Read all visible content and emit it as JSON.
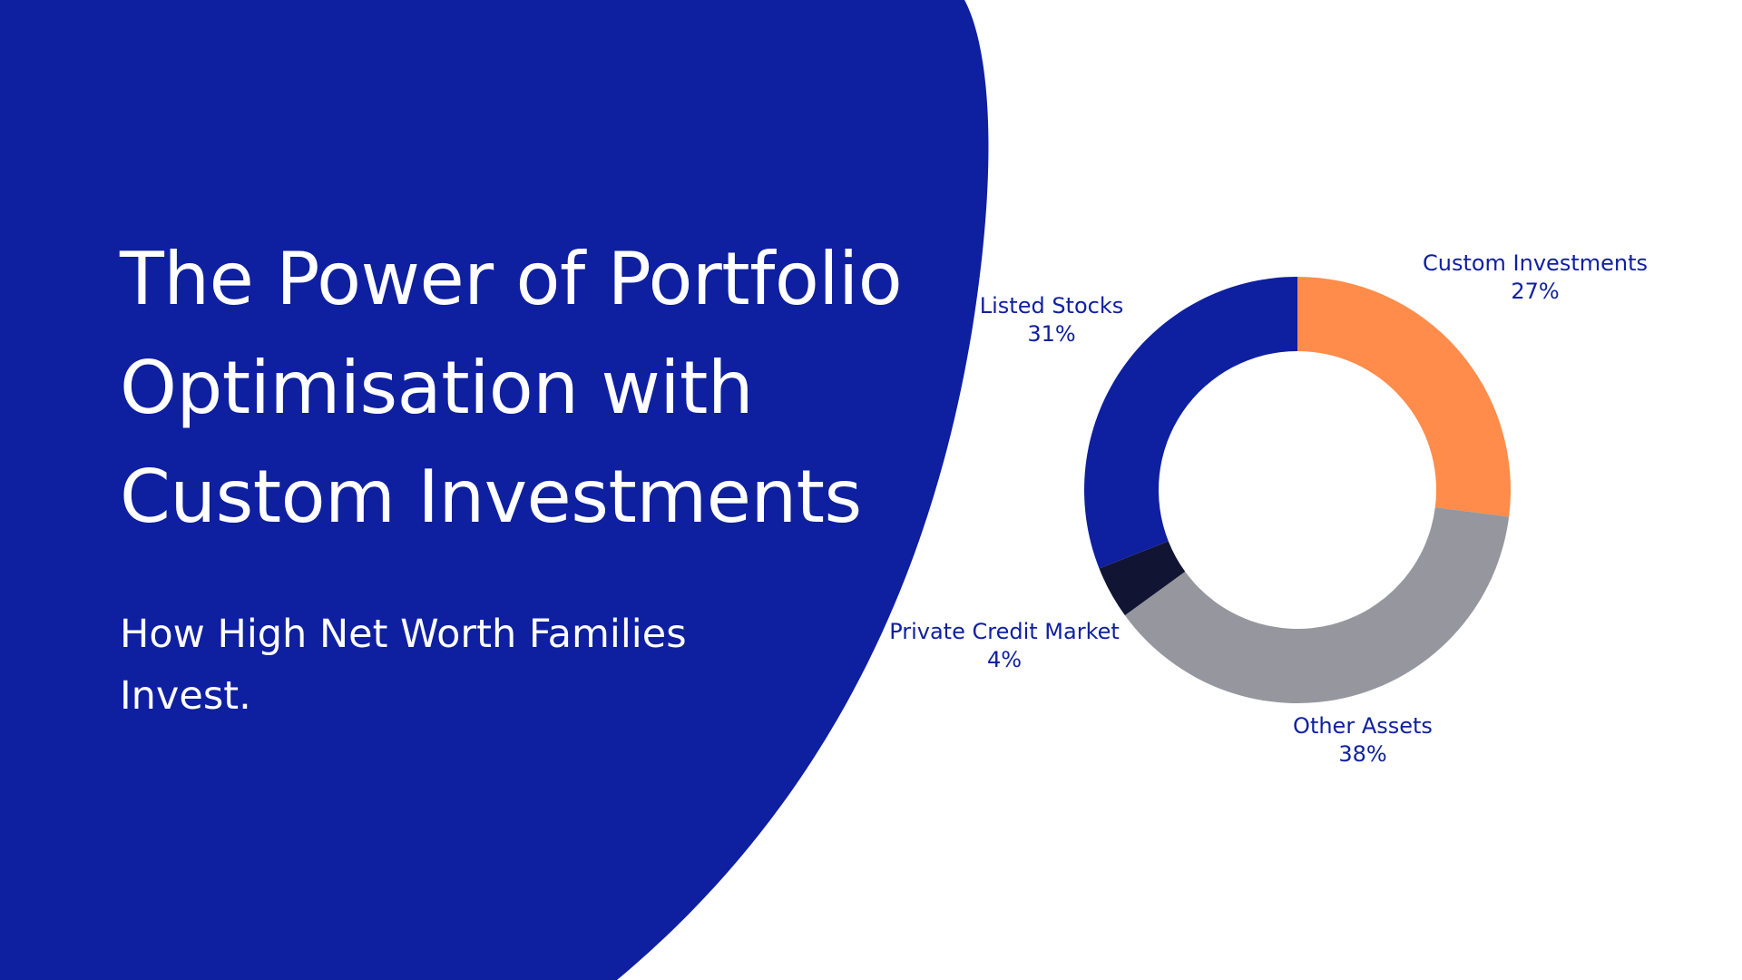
{
  "hero": {
    "title_lines": [
      "The Power of Portfolio",
      "Optimisation with",
      "Custom Investments"
    ],
    "subtitle_lines": [
      "How High Net Worth Families",
      "Invest."
    ]
  },
  "colors": {
    "blue_panel": "#0e1fa0",
    "label_text": "#1020a0"
  },
  "chart_data": {
    "type": "pie",
    "donut": true,
    "title": "",
    "slices": [
      {
        "name": "Custom Investments",
        "value": 27,
        "label": "27%",
        "color": "#ff8c4a"
      },
      {
        "name": "Other Assets",
        "value": 38,
        "label": "38%",
        "color": "#96969e"
      },
      {
        "name": "Private Credit Market",
        "value": 4,
        "label": "4%",
        "color": "#111533"
      },
      {
        "name": "Listed Stocks",
        "value": 31,
        "label": "31%",
        "color": "#0e1fa0"
      }
    ],
    "start_angle_deg": 0,
    "direction": "clockwise",
    "legend": "none"
  }
}
